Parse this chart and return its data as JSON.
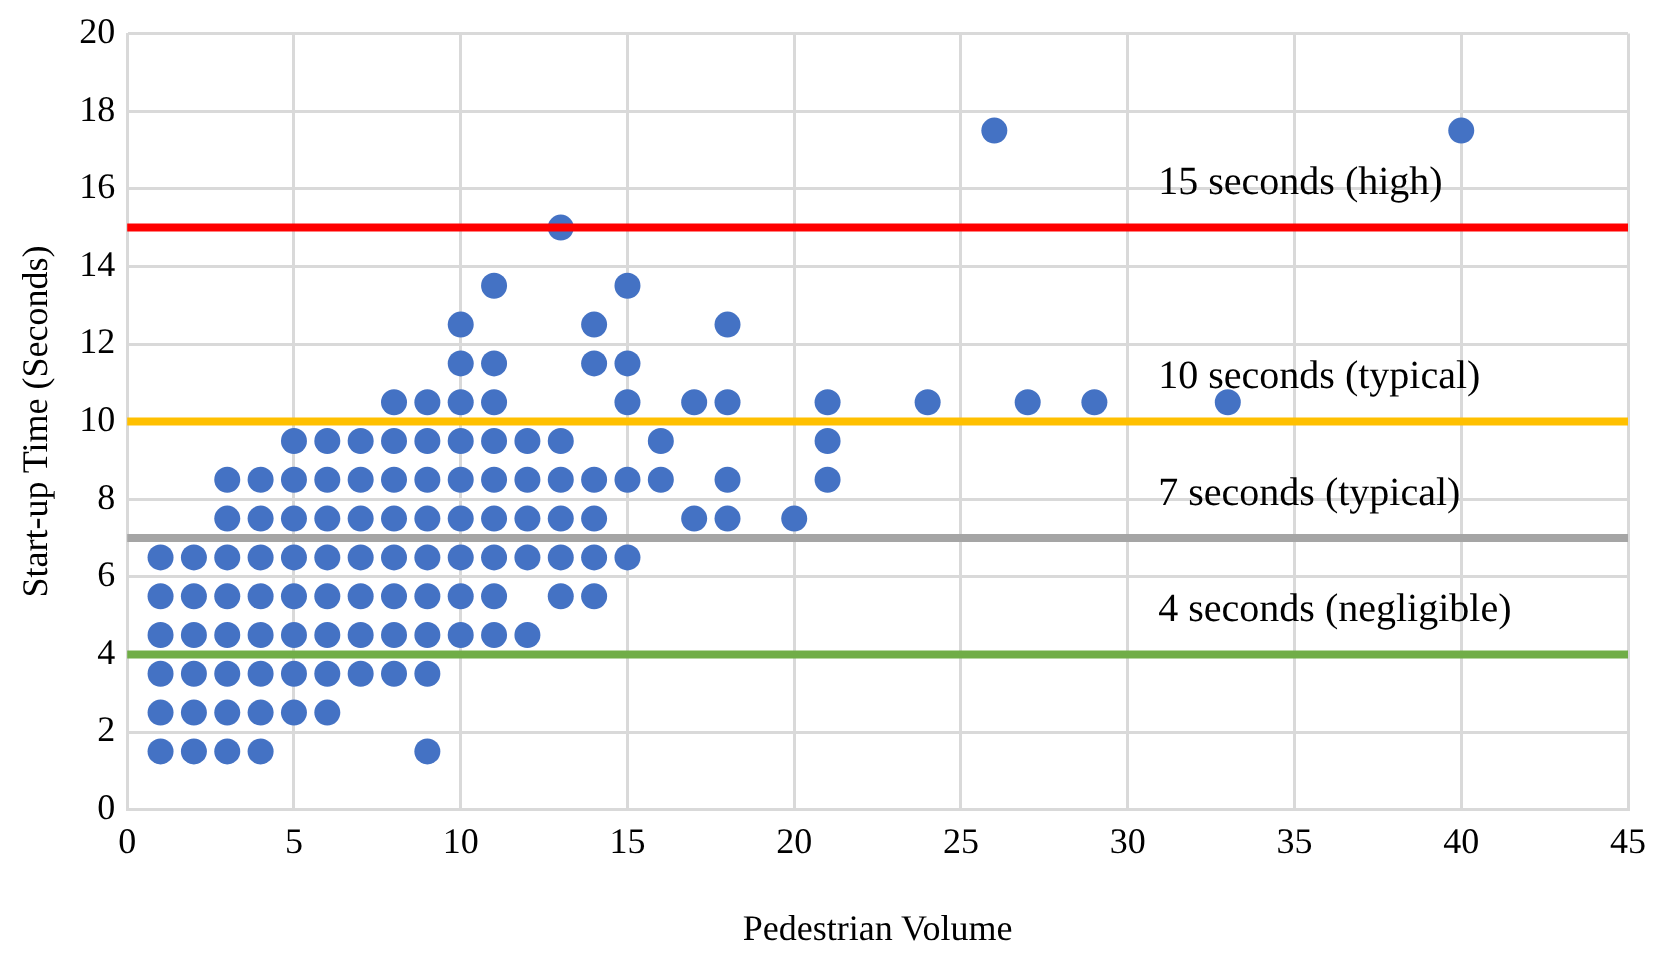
{
  "chart_data": {
    "type": "scatter",
    "xlabel": "Pedestrian Volume",
    "ylabel": "Start-up Time (Seconds)",
    "x": [
      1,
      1,
      1,
      1,
      1,
      1,
      2,
      2,
      2,
      2,
      2,
      2,
      3,
      3,
      3,
      3,
      3,
      3,
      3,
      3,
      4,
      4,
      4,
      4,
      4,
      4,
      4,
      4,
      5,
      5,
      5,
      5,
      5,
      5,
      5,
      5,
      6,
      6,
      6,
      6,
      6,
      6,
      6,
      6,
      7,
      7,
      7,
      7,
      7,
      7,
      7,
      8,
      8,
      8,
      8,
      8,
      8,
      8,
      8,
      9,
      9,
      9,
      9,
      9,
      9,
      9,
      9,
      9,
      10,
      10,
      10,
      10,
      10,
      10,
      10,
      10,
      10,
      11,
      11,
      11,
      11,
      11,
      11,
      11,
      11,
      11,
      12,
      12,
      12,
      12,
      12,
      13,
      13,
      13,
      13,
      13,
      13,
      14,
      14,
      14,
      14,
      14,
      14,
      15,
      15,
      15,
      15,
      15,
      16,
      16,
      17,
      17,
      18,
      18,
      18,
      18,
      20,
      21,
      21,
      21,
      24,
      26,
      27,
      29,
      33,
      40
    ],
    "series": [
      {
        "color": "#4472c4",
        "values": [
          1.5,
          2.5,
          3.5,
          4.5,
          5.5,
          6.5,
          1.5,
          2.5,
          3.5,
          4.5,
          5.5,
          6.5,
          1.5,
          2.5,
          3.5,
          4.5,
          5.5,
          6.5,
          7.5,
          8.5,
          1.5,
          2.5,
          3.5,
          4.5,
          5.5,
          6.5,
          7.5,
          8.5,
          2.5,
          3.5,
          4.5,
          5.5,
          6.5,
          7.5,
          8.5,
          9.5,
          2.5,
          3.5,
          4.5,
          5.5,
          6.5,
          7.5,
          8.5,
          9.5,
          3.5,
          4.5,
          5.5,
          6.5,
          7.5,
          8.5,
          9.5,
          3.5,
          4.5,
          5.5,
          6.5,
          7.5,
          8.5,
          9.5,
          10.5,
          1.5,
          3.5,
          4.5,
          5.5,
          6.5,
          7.5,
          8.5,
          9.5,
          10.5,
          4.5,
          5.5,
          6.5,
          7.5,
          8.5,
          9.5,
          10.5,
          11.5,
          12.5,
          4.5,
          5.5,
          6.5,
          7.5,
          8.5,
          9.5,
          10.5,
          11.5,
          13.5,
          4.5,
          6.5,
          7.5,
          8.5,
          9.5,
          5.5,
          6.5,
          7.5,
          8.5,
          9.5,
          15,
          5.5,
          6.5,
          7.5,
          8.5,
          11.5,
          12.5,
          6.5,
          8.5,
          10.5,
          11.5,
          13.5,
          8.5,
          9.5,
          7.5,
          10.5,
          7.5,
          8.5,
          10.5,
          12.5,
          7.5,
          8.5,
          9.5,
          10.5,
          10.5,
          17.5,
          10.5,
          10.5,
          10.5,
          17.5
        ]
      }
    ],
    "xlim": [
      0,
      45
    ],
    "xticks": [
      0,
      5,
      10,
      15,
      20,
      25,
      30,
      35,
      40,
      45
    ],
    "ylim": [
      0,
      20
    ],
    "yticks": [
      0,
      2,
      4,
      6,
      8,
      10,
      12,
      14,
      16,
      18,
      20
    ],
    "grid": true,
    "marker": "circle",
    "legend": false,
    "ref_lines": [
      {
        "axis": "y",
        "value": 15,
        "label": "15 seconds (high)",
        "color": "#ff0000"
      },
      {
        "axis": "y",
        "value": 10,
        "label": "10 seconds (typical)",
        "color": "#ffc000"
      },
      {
        "axis": "y",
        "value": 7,
        "label": "7 seconds (typical)",
        "color": "#a5a5a5"
      },
      {
        "axis": "y",
        "value": 4,
        "label": "4 seconds (negligible)",
        "color": "#70ad47"
      }
    ]
  }
}
